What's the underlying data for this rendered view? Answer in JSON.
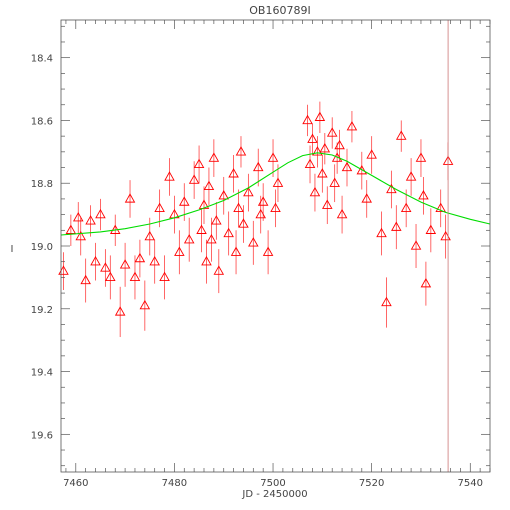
{
  "chart_data": {
    "type": "scatter",
    "title": "OB160789I",
    "xlabel": "JD - 2450000",
    "ylabel": "I",
    "xlim": [
      7457,
      7544
    ],
    "ylim": [
      19.72,
      18.28
    ],
    "x_ticks": [
      7460,
      7480,
      7500,
      7520,
      7540
    ],
    "x_tick_labels": [
      "7460",
      "7480",
      "7500",
      "7520",
      "7540"
    ],
    "y_ticks": [
      18.4,
      18.6,
      18.8,
      19.0,
      19.2,
      19.4,
      19.6
    ],
    "y_tick_labels": [
      "18.4",
      "18.6",
      "18.8",
      "19.0",
      "19.2",
      "19.4",
      "19.6"
    ],
    "grid": false,
    "vertical_line_x": 7535.5,
    "model": {
      "name": "",
      "color": "#00dd00",
      "x": [
        7457,
        7465,
        7470,
        7475,
        7480,
        7485,
        7490,
        7495,
        7500,
        7503,
        7506,
        7509,
        7512,
        7515,
        7520,
        7525,
        7530,
        7535,
        7540,
        7544
      ],
      "y": [
        18.965,
        18.955,
        18.945,
        18.93,
        18.91,
        18.885,
        18.855,
        18.815,
        18.765,
        18.735,
        18.712,
        18.703,
        18.71,
        18.73,
        18.775,
        18.82,
        18.86,
        18.893,
        18.915,
        18.93
      ]
    },
    "series": [
      {
        "color": "#ff0000",
        "marker": "triangle-open",
        "x": [
          7457.5,
          7459.0,
          7460.5,
          7461.0,
          7462.0,
          7463.0,
          7464.0,
          7465.0,
          7466.0,
          7467.0,
          7468.0,
          7469.0,
          7470.0,
          7471.0,
          7472.0,
          7473.0,
          7474.0,
          7475.0,
          7476.0,
          7477.0,
          7478.0,
          7479.0,
          7480.0,
          7481.0,
          7482.0,
          7483.0,
          7484.0,
          7485.0,
          7485.5,
          7486.0,
          7486.5,
          7487.0,
          7487.5,
          7488.0,
          7488.5,
          7489.0,
          7490.0,
          7491.0,
          7492.0,
          7492.5,
          7493.0,
          7493.5,
          7494.0,
          7495.0,
          7496.0,
          7497.0,
          7497.5,
          7498.0,
          7499.0,
          7500.0,
          7500.5,
          7501.0,
          7507.0,
          7507.5,
          7508.0,
          7508.5,
          7509.0,
          7509.5,
          7510.0,
          7510.5,
          7511.0,
          7512.0,
          7512.5,
          7513.0,
          7513.5,
          7514.0,
          7515.0,
          7516.0,
          7518.0,
          7519.0,
          7520.0,
          7522.0,
          7523.0,
          7524.0,
          7525.0,
          7526.0,
          7527.0,
          7528.0,
          7529.0,
          7530.0,
          7530.5,
          7531.0,
          7532.0,
          7534.0,
          7535.0,
          7535.5
        ],
        "y": [
          19.08,
          18.95,
          18.91,
          18.97,
          19.11,
          18.92,
          19.05,
          18.9,
          19.07,
          19.1,
          18.95,
          19.21,
          19.06,
          18.85,
          19.1,
          19.04,
          19.19,
          18.97,
          19.05,
          18.88,
          19.1,
          18.78,
          18.9,
          19.02,
          18.86,
          18.98,
          18.79,
          18.74,
          18.95,
          18.87,
          19.05,
          18.81,
          18.98,
          18.72,
          18.92,
          19.08,
          18.84,
          18.96,
          18.77,
          19.02,
          18.88,
          18.7,
          18.93,
          18.83,
          18.99,
          18.75,
          18.9,
          18.86,
          19.02,
          18.72,
          18.88,
          18.8,
          18.6,
          18.74,
          18.66,
          18.83,
          18.7,
          18.59,
          18.77,
          18.69,
          18.87,
          18.64,
          18.8,
          18.72,
          18.68,
          18.9,
          18.75,
          18.62,
          18.76,
          18.85,
          18.71,
          18.96,
          19.18,
          18.82,
          18.94,
          18.65,
          18.88,
          18.78,
          19.0,
          18.72,
          18.84,
          19.12,
          18.95,
          18.88,
          18.97,
          18.73
        ],
        "yerr": [
          0.06,
          0.05,
          0.05,
          0.06,
          0.07,
          0.05,
          0.06,
          0.05,
          0.06,
          0.07,
          0.05,
          0.08,
          0.07,
          0.06,
          0.07,
          0.06,
          0.08,
          0.06,
          0.07,
          0.06,
          0.07,
          0.06,
          0.06,
          0.07,
          0.06,
          0.07,
          0.06,
          0.06,
          0.07,
          0.06,
          0.07,
          0.06,
          0.07,
          0.06,
          0.06,
          0.07,
          0.06,
          0.07,
          0.06,
          0.07,
          0.06,
          0.05,
          0.06,
          0.06,
          0.07,
          0.06,
          0.06,
          0.06,
          0.07,
          0.06,
          0.06,
          0.06,
          0.05,
          0.06,
          0.05,
          0.06,
          0.05,
          0.05,
          0.06,
          0.05,
          0.06,
          0.05,
          0.06,
          0.05,
          0.05,
          0.06,
          0.06,
          0.05,
          0.06,
          0.06,
          0.06,
          0.07,
          0.08,
          0.06,
          0.07,
          0.05,
          0.06,
          0.06,
          0.07,
          0.06,
          0.06,
          0.07,
          0.07,
          0.06,
          0.07,
          0.06
        ]
      }
    ]
  }
}
